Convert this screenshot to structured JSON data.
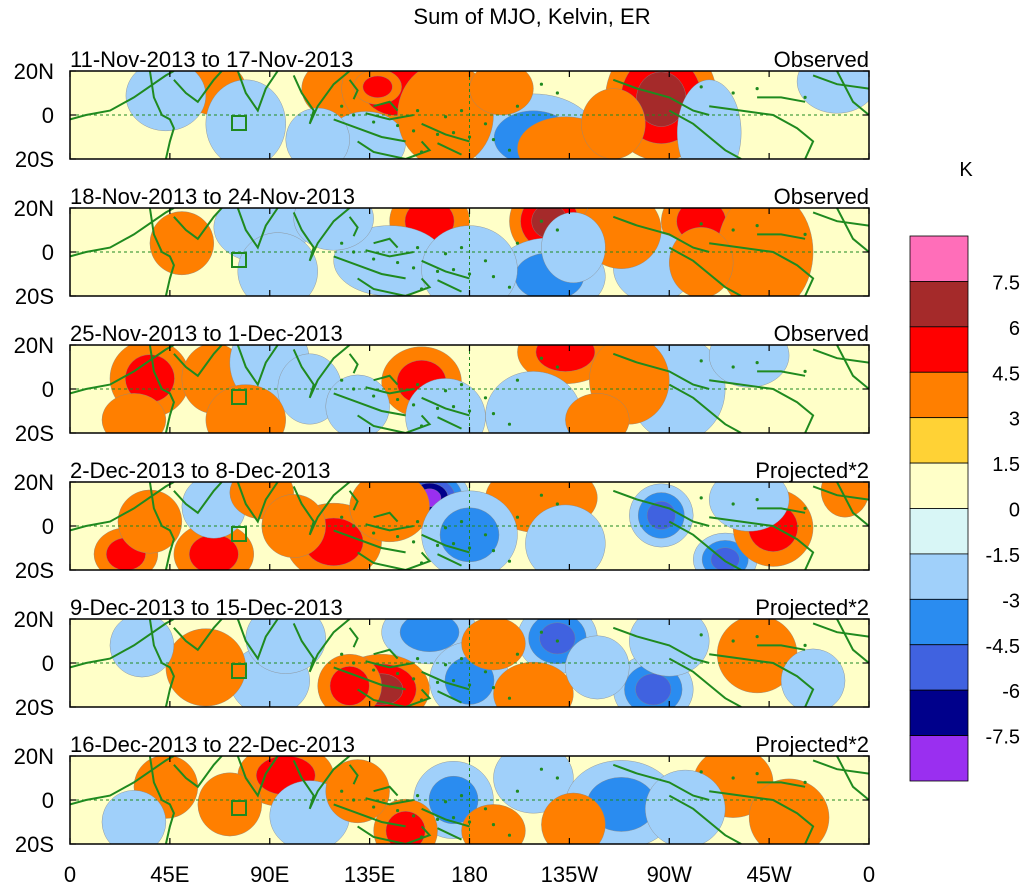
{
  "chart_data": {
    "type": "heatmap",
    "title": "Sum of MJO, Kelvin, ER",
    "units": "K",
    "x_ticks": [
      "0",
      "45E",
      "90E",
      "135E",
      "180",
      "135W",
      "90W",
      "45W",
      "0"
    ],
    "y_ticks": [
      "20N",
      "0",
      "20S"
    ],
    "colorbar": {
      "labels": [
        "7.5",
        "6",
        "4.5",
        "3",
        "1.5",
        "0",
        "-1.5",
        "-3",
        "-4.5",
        "-6",
        "-7.5"
      ],
      "colors": [
        "#ff6eb9",
        "#a52a2a",
        "#ff0000",
        "#ff7f00",
        "#ffd235",
        "#ffffc8",
        "#d8f6f6",
        "#a0d0fa",
        "#2a8cf0",
        "#4062e0",
        "#00008b",
        "#9a2ff0"
      ]
    },
    "panels": [
      {
        "date_range": "11-Nov-2013 to 17-Nov-2013",
        "type": "Observed",
        "blobs": [
          [
            0.34,
            0.2,
            0.05,
            0.18,
            1
          ],
          [
            0.18,
            0.2,
            0.04,
            0.15,
            1
          ],
          [
            0.41,
            0.2,
            0.07,
            0.25,
            2
          ],
          [
            0.385,
            0.18,
            0.03,
            0.1,
            2
          ],
          [
            0.37,
            0.82,
            0.05,
            0.18,
            -1
          ],
          [
            0.58,
            0.76,
            0.08,
            0.25,
            -2
          ],
          [
            0.22,
            0.6,
            0.05,
            0.25,
            -1
          ],
          [
            0.47,
            0.5,
            0.06,
            0.3,
            1
          ],
          [
            0.62,
            0.88,
            0.06,
            0.18,
            1
          ],
          [
            0.31,
            0.78,
            0.04,
            0.18,
            -1
          ],
          [
            0.12,
            0.28,
            0.05,
            0.2,
            -1
          ],
          [
            0.74,
            0.32,
            0.07,
            0.35,
            3
          ],
          [
            0.54,
            0.2,
            0.04,
            0.15,
            1
          ],
          [
            0.96,
            0.12,
            0.05,
            0.18,
            -1
          ],
          [
            0.8,
            0.7,
            0.04,
            0.3,
            -1
          ],
          [
            0.68,
            0.6,
            0.04,
            0.2,
            1
          ]
        ]
      },
      {
        "date_range": "18-Nov-2013 to 24-Nov-2013",
        "type": "Observed",
        "blobs": [
          [
            0.6,
            0.15,
            0.05,
            0.22,
            3
          ],
          [
            0.45,
            0.15,
            0.05,
            0.2,
            2
          ],
          [
            0.79,
            0.15,
            0.05,
            0.2,
            2
          ],
          [
            0.24,
            0.22,
            0.06,
            0.2,
            -1
          ],
          [
            0.6,
            0.78,
            0.07,
            0.22,
            -2
          ],
          [
            0.73,
            0.68,
            0.05,
            0.2,
            -1
          ],
          [
            0.4,
            0.6,
            0.07,
            0.2,
            -1
          ],
          [
            0.26,
            0.72,
            0.05,
            0.22,
            -1
          ],
          [
            0.14,
            0.4,
            0.04,
            0.18,
            1
          ],
          [
            0.87,
            0.5,
            0.06,
            0.35,
            1
          ],
          [
            0.5,
            0.7,
            0.06,
            0.25,
            -1
          ],
          [
            0.33,
            0.12,
            0.05,
            0.18,
            -1
          ],
          [
            0.69,
            0.25,
            0.05,
            0.22,
            1
          ],
          [
            0.79,
            0.62,
            0.04,
            0.2,
            1
          ],
          [
            0.63,
            0.45,
            0.04,
            0.2,
            -1
          ]
        ]
      },
      {
        "date_range": "25-Nov-2013 to 1-Dec-2013",
        "type": "Observed",
        "blobs": [
          [
            0.62,
            0.08,
            0.06,
            0.18,
            2
          ],
          [
            0.44,
            0.42,
            0.05,
            0.2,
            2
          ],
          [
            0.1,
            0.38,
            0.05,
            0.22,
            2
          ],
          [
            0.18,
            0.38,
            0.04,
            0.2,
            1
          ],
          [
            0.25,
            0.2,
            0.05,
            0.25,
            -1
          ],
          [
            0.58,
            0.8,
            0.06,
            0.25,
            -1
          ],
          [
            0.47,
            0.82,
            0.05,
            0.22,
            -1
          ],
          [
            0.76,
            0.5,
            0.06,
            0.3,
            -1
          ],
          [
            0.3,
            0.5,
            0.04,
            0.2,
            -1
          ],
          [
            0.85,
            0.12,
            0.05,
            0.18,
            -1
          ],
          [
            0.22,
            0.85,
            0.05,
            0.2,
            1
          ],
          [
            0.7,
            0.4,
            0.05,
            0.25,
            1
          ],
          [
            0.08,
            0.85,
            0.04,
            0.15,
            1
          ],
          [
            0.36,
            0.7,
            0.04,
            0.18,
            -1
          ],
          [
            0.66,
            0.85,
            0.04,
            0.15,
            1
          ]
        ]
      },
      {
        "date_range": "2-Dec-2013 to 8-Dec-2013",
        "type": "Projected*2",
        "blobs": [
          [
            0.45,
            0.18,
            0.05,
            0.18,
            -5
          ],
          [
            0.59,
            0.18,
            0.07,
            0.2,
            1
          ],
          [
            0.33,
            0.68,
            0.06,
            0.22,
            2
          ],
          [
            0.4,
            0.28,
            0.05,
            0.2,
            1
          ],
          [
            0.5,
            0.6,
            0.06,
            0.25,
            -2
          ],
          [
            0.74,
            0.38,
            0.04,
            0.18,
            -3
          ],
          [
            0.82,
            0.88,
            0.04,
            0.15,
            -3
          ],
          [
            0.88,
            0.52,
            0.05,
            0.22,
            2
          ],
          [
            0.07,
            0.82,
            0.04,
            0.15,
            2
          ],
          [
            0.18,
            0.82,
            0.05,
            0.18,
            2
          ],
          [
            0.1,
            0.45,
            0.04,
            0.18,
            1
          ],
          [
            0.18,
            0.28,
            0.04,
            0.18,
            -1
          ],
          [
            0.24,
            0.12,
            0.04,
            0.15,
            1
          ],
          [
            0.62,
            0.7,
            0.05,
            0.22,
            -1
          ],
          [
            0.85,
            0.2,
            0.05,
            0.18,
            -1
          ],
          [
            0.97,
            0.1,
            0.03,
            0.15,
            1
          ],
          [
            0.28,
            0.5,
            0.04,
            0.18,
            1
          ]
        ]
      },
      {
        "date_range": "9-Dec-2013 to 15-Dec-2013",
        "type": "Projected*2",
        "blobs": [
          [
            0.45,
            0.15,
            0.06,
            0.18,
            -2
          ],
          [
            0.61,
            0.22,
            0.05,
            0.2,
            -3
          ],
          [
            0.39,
            0.8,
            0.06,
            0.2,
            3
          ],
          [
            0.35,
            0.76,
            0.04,
            0.18,
            2
          ],
          [
            0.5,
            0.7,
            0.05,
            0.22,
            -2
          ],
          [
            0.73,
            0.8,
            0.05,
            0.2,
            -3
          ],
          [
            0.58,
            0.85,
            0.05,
            0.18,
            1
          ],
          [
            0.25,
            0.7,
            0.05,
            0.2,
            -1
          ],
          [
            0.17,
            0.55,
            0.05,
            0.22,
            1
          ],
          [
            0.27,
            0.22,
            0.05,
            0.2,
            -1
          ],
          [
            0.75,
            0.25,
            0.05,
            0.2,
            -1
          ],
          [
            0.86,
            0.4,
            0.05,
            0.22,
            1
          ],
          [
            0.93,
            0.7,
            0.04,
            0.18,
            -1
          ],
          [
            0.09,
            0.3,
            0.04,
            0.18,
            -1
          ],
          [
            0.53,
            0.28,
            0.04,
            0.15,
            1
          ],
          [
            0.66,
            0.55,
            0.04,
            0.18,
            -1
          ]
        ]
      },
      {
        "date_range": "16-Dec-2013 to 22-Dec-2013",
        "type": "Projected*2",
        "blobs": [
          [
            0.58,
            0.25,
            0.05,
            0.2,
            -1
          ],
          [
            0.69,
            0.55,
            0.07,
            0.25,
            -2
          ],
          [
            0.48,
            0.5,
            0.05,
            0.22,
            -2
          ],
          [
            0.42,
            0.85,
            0.04,
            0.18,
            2
          ],
          [
            0.27,
            0.22,
            0.06,
            0.18,
            2
          ],
          [
            0.2,
            0.55,
            0.04,
            0.18,
            1
          ],
          [
            0.12,
            0.35,
            0.04,
            0.18,
            1
          ],
          [
            0.3,
            0.68,
            0.05,
            0.2,
            -1
          ],
          [
            0.83,
            0.3,
            0.05,
            0.2,
            1
          ],
          [
            0.77,
            0.6,
            0.05,
            0.22,
            -1
          ],
          [
            0.9,
            0.7,
            0.05,
            0.22,
            1
          ],
          [
            0.08,
            0.75,
            0.04,
            0.18,
            -1
          ],
          [
            0.36,
            0.4,
            0.04,
            0.18,
            1
          ],
          [
            0.53,
            0.85,
            0.04,
            0.15,
            1
          ],
          [
            0.63,
            0.78,
            0.04,
            0.18,
            1
          ]
        ]
      }
    ]
  }
}
